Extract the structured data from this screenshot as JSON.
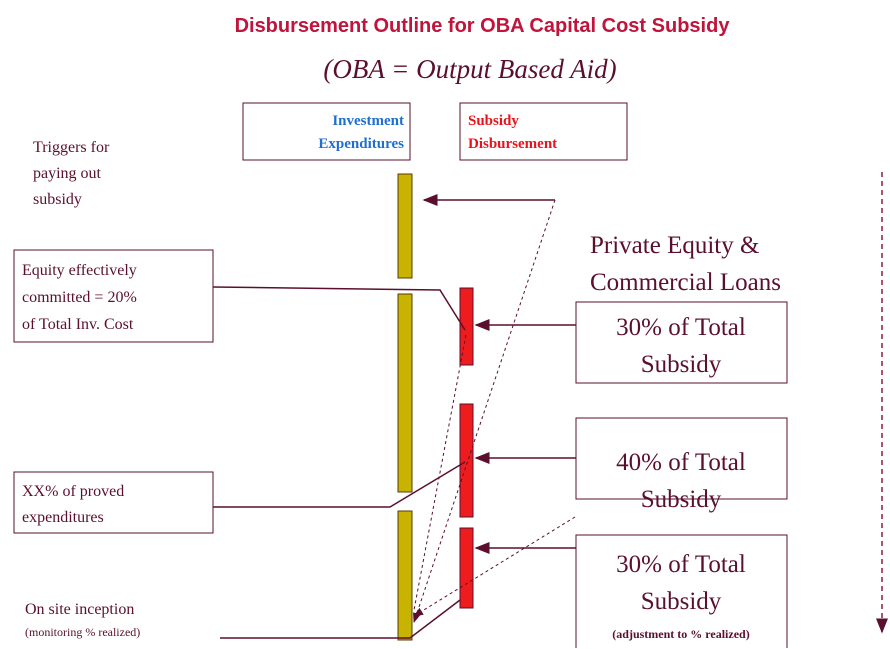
{
  "title": "Disbursement Outline for OBA Capital Cost Subsidy",
  "subtitle": "(OBA  = Output Based Aid)",
  "headers": {
    "investment": [
      "Investment",
      "Expenditures"
    ],
    "subsidy": [
      "Subsidy",
      "Disbursement"
    ]
  },
  "left": {
    "triggers": [
      "Triggers for",
      "paying out",
      "subsidy"
    ],
    "equity": [
      "Equity effectively",
      "committed = 20%",
      "of Total Inv. Cost"
    ],
    "proved": [
      "XX% of proved",
      "expenditures"
    ],
    "inception": "On site inception",
    "inception_note": "(monitoring % realized)"
  },
  "private": [
    "Private Equity &",
    "Commercial Loans"
  ],
  "boxes": [
    {
      "lines": [
        "30% of Total",
        "Subsidy"
      ]
    },
    {
      "lines": [
        "40% of Total",
        "Subsidy"
      ]
    },
    {
      "lines": [
        "30% of Total",
        "Subsidy"
      ],
      "note": "(adjustment to % realized)"
    }
  ]
}
